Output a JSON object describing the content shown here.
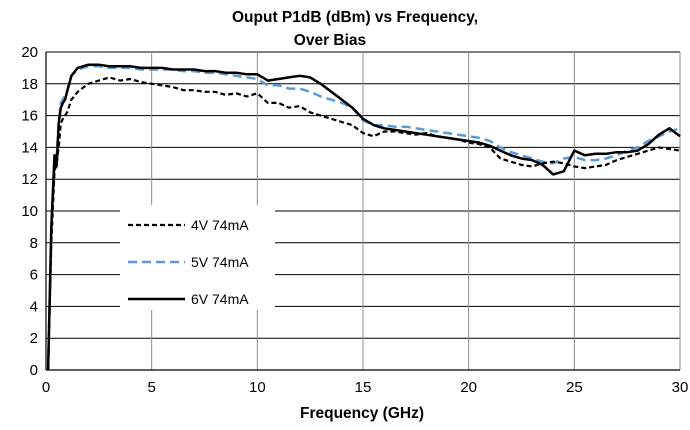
{
  "chart_data": {
    "type": "line",
    "title_line1": "Ouput P1dB (dBm) vs Frequency,",
    "title_line2": "Over Bias",
    "xlabel": "Frequency (GHz)",
    "ylabel": "",
    "xlim": [
      0,
      30
    ],
    "ylim": [
      0,
      20
    ],
    "xticks": [
      0,
      5,
      10,
      15,
      20,
      25,
      30
    ],
    "yticks": [
      0,
      2,
      4,
      6,
      8,
      10,
      12,
      14,
      16,
      18,
      20
    ],
    "grid": true,
    "legend_position": "left-center",
    "series": [
      {
        "name": "4V 74mA",
        "color": "#000000",
        "style": "dashed",
        "x": [
          0.1,
          0.25,
          0.4,
          0.5,
          0.6,
          0.7,
          0.8,
          0.9,
          1.0,
          1.2,
          1.5,
          2.0,
          2.5,
          3.0,
          3.5,
          4.0,
          4.5,
          5.0,
          5.5,
          6.0,
          6.5,
          7.0,
          7.5,
          8.0,
          8.5,
          9.0,
          9.5,
          10.0,
          10.5,
          11.0,
          11.5,
          12.0,
          12.5,
          13.0,
          13.5,
          14.0,
          14.5,
          15.0,
          15.5,
          16.0,
          16.5,
          17.0,
          17.5,
          18.0,
          18.5,
          19.0,
          19.5,
          20.0,
          20.5,
          21.0,
          21.5,
          22.0,
          22.5,
          23.0,
          23.5,
          24.0,
          24.5,
          25.0,
          25.5,
          26.0,
          26.5,
          27.0,
          27.5,
          28.0,
          28.5,
          29.0,
          29.5,
          30.0
        ],
        "values": [
          0.0,
          8.0,
          12.5,
          13.0,
          14.0,
          15.5,
          15.8,
          16.0,
          16.2,
          17.0,
          17.5,
          18.0,
          18.2,
          18.4,
          18.2,
          18.3,
          18.1,
          18.0,
          17.9,
          17.8,
          17.6,
          17.6,
          17.5,
          17.5,
          17.3,
          17.4,
          17.2,
          17.4,
          16.8,
          16.8,
          16.5,
          16.6,
          16.2,
          16.0,
          15.8,
          15.6,
          15.4,
          14.9,
          14.7,
          15.0,
          15.0,
          14.9,
          14.8,
          14.9,
          14.7,
          14.6,
          14.5,
          14.3,
          14.2,
          14.0,
          13.3,
          13.1,
          12.9,
          12.8,
          13.0,
          13.1,
          13.0,
          12.8,
          12.7,
          12.8,
          12.9,
          13.2,
          13.4,
          13.6,
          13.8,
          14.0,
          13.9,
          13.8
        ]
      },
      {
        "name": "5V 74mA",
        "color": "#5b9bd5",
        "style": "dashed",
        "x": [
          0.1,
          0.25,
          0.4,
          0.5,
          0.6,
          0.7,
          0.8,
          0.9,
          1.0,
          1.2,
          1.5,
          2.0,
          2.5,
          3.0,
          3.5,
          4.0,
          4.5,
          5.0,
          5.5,
          6.0,
          6.5,
          7.0,
          7.5,
          8.0,
          8.5,
          9.0,
          9.5,
          10.0,
          10.5,
          11.0,
          11.5,
          12.0,
          12.5,
          13.0,
          13.5,
          14.0,
          14.5,
          15.0,
          15.5,
          16.0,
          16.5,
          17.0,
          17.5,
          18.0,
          18.5,
          19.0,
          19.5,
          20.0,
          20.5,
          21.0,
          21.5,
          22.0,
          22.5,
          23.0,
          23.5,
          24.0,
          24.5,
          25.0,
          25.5,
          26.0,
          26.5,
          27.0,
          27.5,
          28.0,
          28.5,
          29.0,
          29.5,
          30.0
        ],
        "values": [
          0.0,
          8.5,
          13.0,
          13.5,
          15.5,
          16.8,
          17.0,
          17.3,
          17.6,
          18.5,
          18.9,
          19.1,
          19.1,
          19.0,
          19.0,
          19.0,
          18.9,
          18.9,
          18.9,
          18.9,
          18.8,
          18.8,
          18.7,
          18.7,
          18.6,
          18.5,
          18.4,
          18.3,
          17.9,
          17.9,
          17.7,
          17.7,
          17.5,
          17.2,
          17.0,
          16.8,
          16.5,
          15.7,
          15.4,
          15.4,
          15.3,
          15.3,
          15.2,
          15.1,
          15.0,
          14.9,
          14.8,
          14.7,
          14.6,
          14.4,
          14.0,
          13.7,
          13.5,
          13.3,
          13.1,
          13.0,
          13.3,
          13.4,
          13.2,
          13.2,
          13.3,
          13.5,
          13.8,
          14.0,
          14.4,
          14.7,
          15.0,
          15.2
        ]
      },
      {
        "name": "6V 74mA",
        "color": "#000000",
        "style": "solid",
        "x": [
          0.1,
          0.25,
          0.4,
          0.5,
          0.6,
          0.7,
          0.8,
          0.9,
          1.0,
          1.2,
          1.5,
          2.0,
          2.5,
          3.0,
          3.5,
          4.0,
          4.5,
          5.0,
          5.5,
          6.0,
          6.5,
          7.0,
          7.5,
          8.0,
          8.5,
          9.0,
          9.5,
          10.0,
          10.5,
          11.0,
          11.5,
          12.0,
          12.5,
          13.0,
          13.5,
          14.0,
          14.5,
          15.0,
          15.5,
          16.0,
          16.5,
          17.0,
          17.5,
          18.0,
          18.5,
          19.0,
          19.5,
          20.0,
          20.5,
          21.0,
          21.5,
          22.0,
          22.5,
          23.0,
          23.5,
          24.0,
          24.5,
          25.0,
          25.5,
          26.0,
          26.5,
          27.0,
          27.5,
          28.0,
          28.5,
          29.0,
          29.5,
          30.0
        ],
        "values": [
          0.0,
          9.0,
          13.5,
          12.8,
          15.5,
          16.5,
          16.8,
          17.0,
          17.5,
          18.5,
          19.0,
          19.2,
          19.2,
          19.1,
          19.1,
          19.1,
          19.0,
          19.0,
          19.0,
          18.9,
          18.9,
          18.9,
          18.8,
          18.8,
          18.7,
          18.7,
          18.6,
          18.6,
          18.2,
          18.3,
          18.4,
          18.5,
          18.4,
          18.0,
          17.5,
          17.0,
          16.5,
          15.8,
          15.4,
          15.2,
          15.1,
          15.0,
          14.9,
          14.8,
          14.7,
          14.6,
          14.5,
          14.4,
          14.3,
          14.1,
          13.8,
          13.5,
          13.3,
          13.2,
          12.9,
          12.3,
          12.5,
          13.8,
          13.5,
          13.6,
          13.6,
          13.7,
          13.7,
          13.8,
          14.2,
          14.8,
          15.2,
          14.7
        ]
      }
    ]
  }
}
